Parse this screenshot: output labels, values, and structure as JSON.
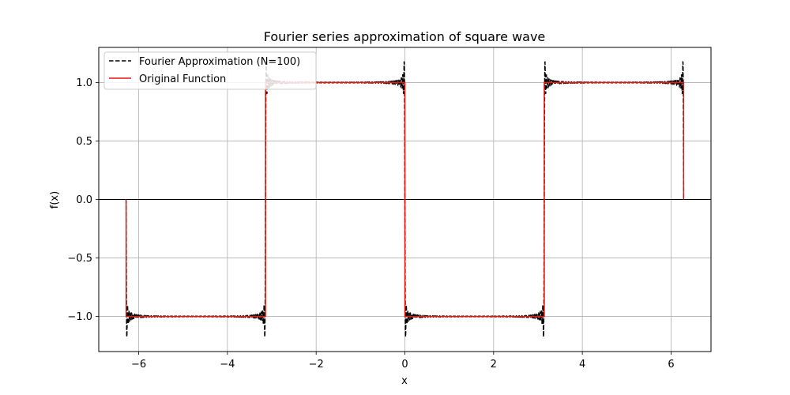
{
  "chart_data": {
    "type": "line",
    "title": "Fourier series approximation of square wave",
    "xlabel": "x",
    "ylabel": "f(x)",
    "xlim": [
      -6.9,
      6.9
    ],
    "ylim": [
      -1.3,
      1.3
    ],
    "xticks": [
      -6,
      -4,
      -2,
      0,
      2,
      4,
      6
    ],
    "xtick_labels": [
      "−6",
      "−4",
      "−2",
      "0",
      "2",
      "4",
      "6"
    ],
    "yticks": [
      -1.0,
      -0.5,
      0.0,
      0.5,
      1.0
    ],
    "ytick_labels": [
      "−1.0",
      "−0.5",
      "0.0",
      "0.5",
      "1.0"
    ],
    "grid": true,
    "legend_position": "top-left",
    "zero_line": true,
    "domain": [
      -6.2832,
      6.2832
    ],
    "discontinuities": [
      -6.2832,
      -3.1416,
      0.0,
      3.1416,
      6.2832
    ],
    "series": [
      {
        "name": "Fourier Approximation (N=100)",
        "style": "dashed",
        "color": "#000000",
        "harmonics": 100
      },
      {
        "name": "Original Function",
        "style": "solid",
        "color": "#e8150f",
        "x": [
          -6.2832,
          -6.2832,
          -3.1416,
          -3.1416,
          0.0,
          0.0,
          3.1416,
          3.1416,
          6.2832,
          6.2832
        ],
        "y": [
          0.0,
          -1.0,
          -1.0,
          1.0,
          1.0,
          -1.0,
          -1.0,
          1.0,
          1.0,
          0.0
        ]
      }
    ]
  }
}
